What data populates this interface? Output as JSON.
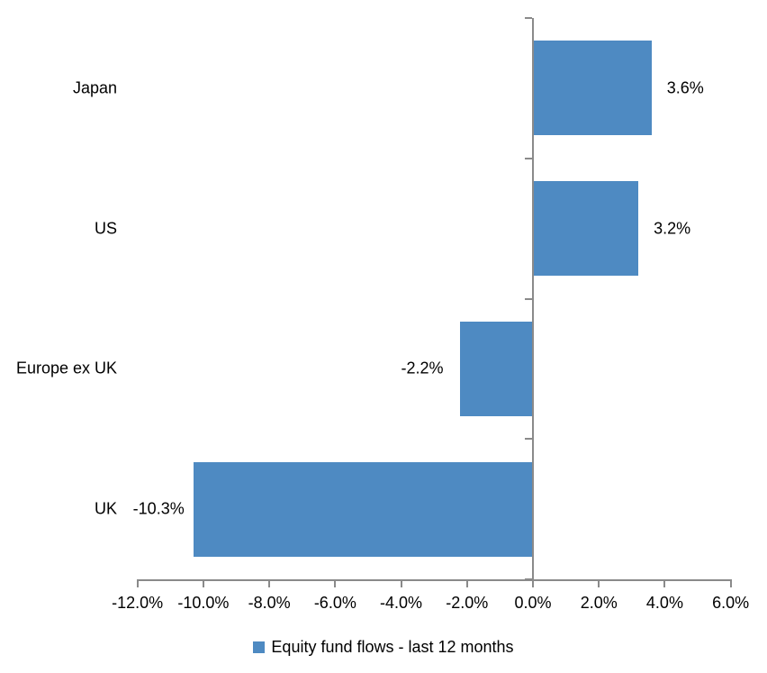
{
  "chart_data": {
    "type": "bar",
    "orientation": "horizontal",
    "categories": [
      "Japan",
      "US",
      "Europe ex UK",
      "UK"
    ],
    "values": [
      3.6,
      3.2,
      -2.2,
      -10.3
    ],
    "data_labels": [
      "3.6%",
      "3.2%",
      "-2.2%",
      "-10.3%"
    ],
    "x_ticks": [
      -12,
      -10,
      -8,
      -6,
      -4,
      -2,
      0,
      2,
      4,
      6
    ],
    "x_tick_labels": [
      "-12.0%",
      "-10.0%",
      "-8.0%",
      "-6.0%",
      "-4.0%",
      "-2.0%",
      "0.0%",
      "2.0%",
      "4.0%",
      "6.0%"
    ],
    "xlim": [
      -12,
      6
    ],
    "grid": false,
    "legend": [
      "Equity fund flows - last 12 months"
    ],
    "legend_position": "bottom",
    "bar_color": "#4E8AC2",
    "axis_color": "#8a8a8a",
    "text_color": "#000000"
  }
}
